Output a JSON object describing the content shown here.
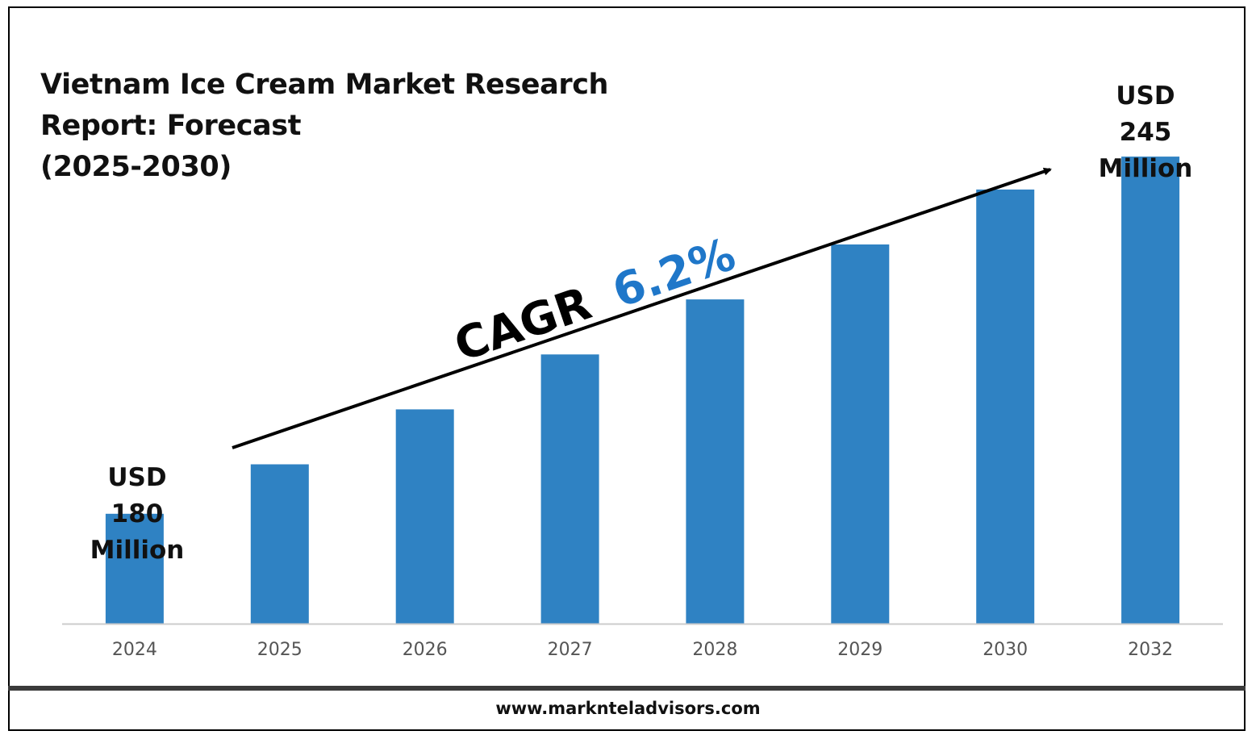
{
  "title_lines": [
    "Vietnam Ice Cream Market Research",
    "Report: Forecast",
    "(2025-2030)"
  ],
  "colors": {
    "bar": "#2f82c3",
    "cagr_value": "#1f77c9",
    "axis": "#cccccc",
    "footer_band": "#3b3b3b"
  },
  "chart_data": {
    "type": "bar",
    "categories": [
      "2024",
      "2025",
      "2026",
      "2027",
      "2028",
      "2029",
      "2030",
      "2032"
    ],
    "values": [
      180,
      189,
      199,
      209,
      219,
      229,
      239,
      245
    ],
    "ylim": [
      160,
      250
    ],
    "annotations": {
      "start": {
        "lines": [
          "USD",
          "180",
          "Million"
        ]
      },
      "end": {
        "lines": [
          "USD",
          "245",
          "Million"
        ]
      },
      "cagr_label": "CAGR",
      "cagr_value": "6.2%"
    }
  },
  "footer": {
    "url": "www.marknteladvisors.com"
  }
}
